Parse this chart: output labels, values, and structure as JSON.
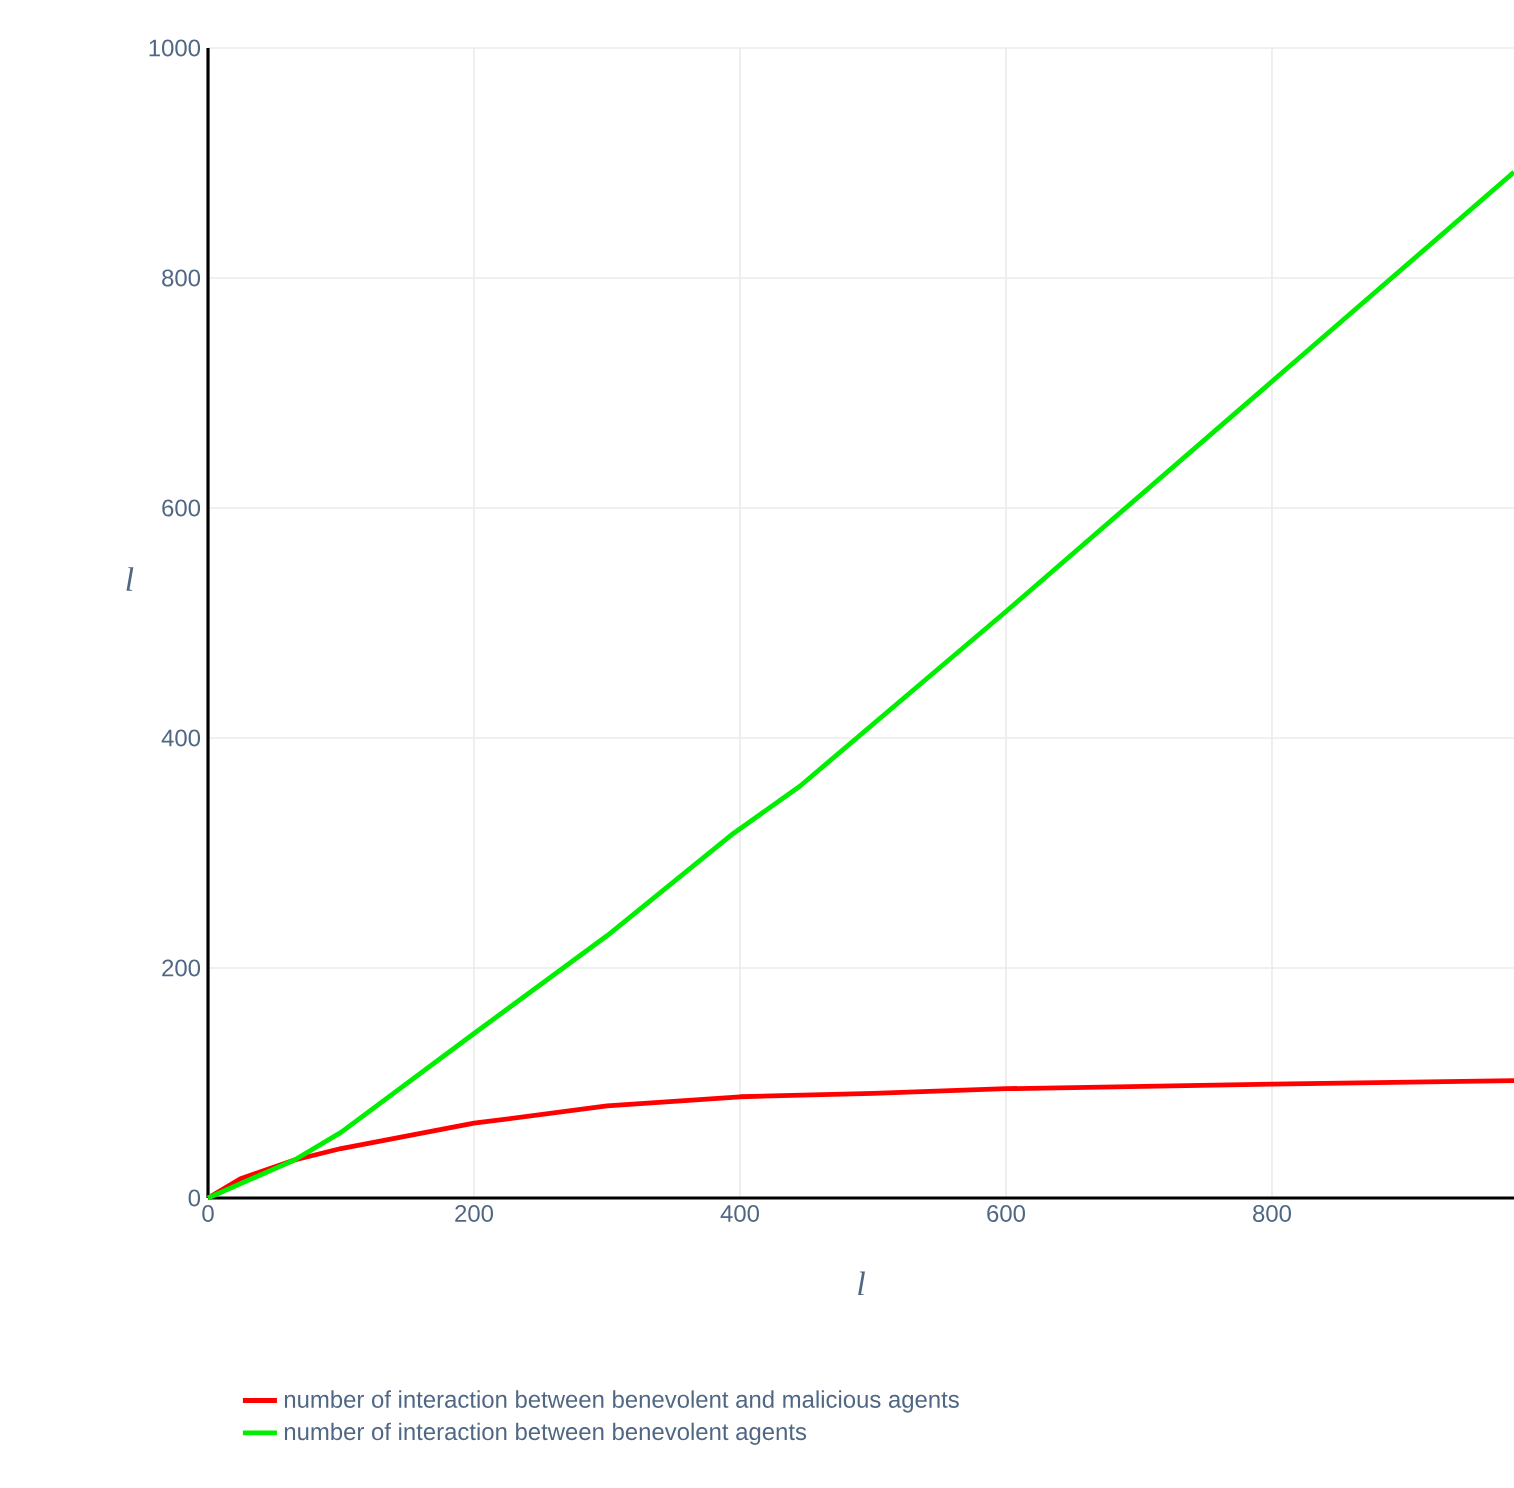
{
  "chart_data": {
    "type": "line",
    "xlabel": "l",
    "ylabel": "l",
    "xlim": [
      0,
      982
    ],
    "ylim": [
      0,
      1000
    ],
    "xticks": [
      0,
      200,
      400,
      600,
      800
    ],
    "yticks": [
      0,
      200,
      400,
      600,
      800,
      1000
    ],
    "grid": true,
    "legend": "bottom",
    "line_style": "solid",
    "marker": "none",
    "series": [
      {
        "name": "number of interaction between benevolent and malicious agents",
        "color": "#ff0000",
        "x": [
          0,
          25,
          65,
          100,
          200,
          300,
          400,
          500,
          600,
          800,
          982
        ],
        "values": [
          0,
          17,
          33,
          43,
          65,
          80,
          88,
          91,
          95,
          99,
          102
        ]
      },
      {
        "name": "number of interaction between benevolent agents",
        "color": "#00ee00",
        "x": [
          0,
          65,
          100,
          200,
          300,
          395,
          445,
          600,
          796,
          982
        ],
        "values": [
          0,
          33,
          57,
          143,
          228,
          317,
          358,
          510,
          706,
          892
        ]
      }
    ]
  }
}
